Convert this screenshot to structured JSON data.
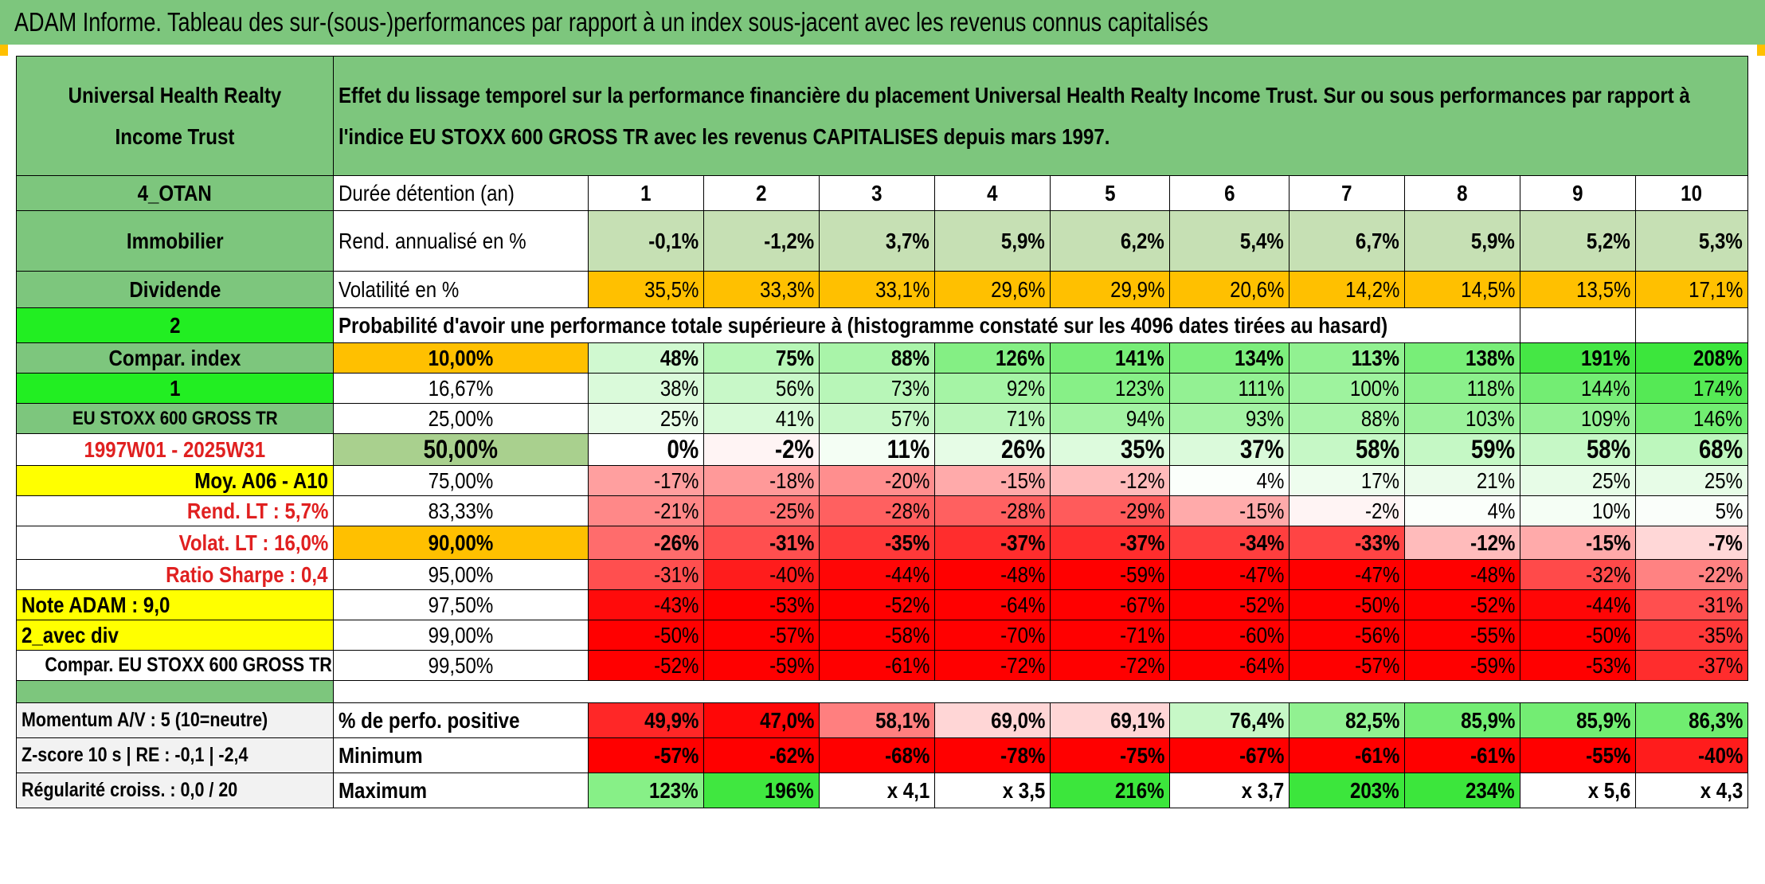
{
  "title": "ADAM Informe. Tableau des sur-(sous-)performances par rapport à un index sous-jacent avec les revenus connus capitalisés",
  "left": {
    "fund_name": "Universal Health Realty Income Trust",
    "code": "4_OTAN",
    "sector": "Immobilier",
    "type": "Dividende",
    "selector_1": "2",
    "compar_index_label": "Compar. index",
    "selector_2": "1",
    "index_name": "EU STOXX 600 GROSS TR",
    "period": "1997W01 - 2025W31",
    "moy": "Moy. A06 - A10",
    "rend_lt": "Rend. LT :   5,7%",
    "volat_lt": "Volat. LT :   16,0%",
    "sharpe": "Ratio Sharpe :   0,4",
    "note": "Note ADAM : 9,0",
    "div_mode": "2_avec div",
    "compar": "Compar. EU STOXX 600 GROSS TR",
    "momentum": "Momentum A/V : 5 (10=neutre)",
    "zscore": "Z-score 10 s | RE : -0,1 | -2,4",
    "regularite": "Régularité croiss. : 0,0 / 20"
  },
  "description": "Effet du lissage temporel sur la performance financière du placement Universal Health Realty Income Trust. Sur ou sous performances par rapport à l'indice EU STOXX 600 GROSS TR avec les revenus CAPITALISES depuis mars 1997.",
  "labels": {
    "duree": "Durée détention (an)",
    "rend": "Rend. annualisé en %",
    "volat": "Volatilité en %",
    "proba": "Probabilité d'avoir une performance totale supérieure à (histogramme constaté sur les 4096 dates tirées au hasard)",
    "pct_pos": "% de perfo. positive",
    "minimum": "Minimum",
    "maximum": "Maximum"
  },
  "years": [
    "1",
    "2",
    "3",
    "4",
    "5",
    "6",
    "7",
    "8",
    "9",
    "10"
  ],
  "rend": [
    "-0,1%",
    "-1,2%",
    "3,7%",
    "5,9%",
    "6,2%",
    "5,4%",
    "6,7%",
    "5,9%",
    "5,2%",
    "5,3%"
  ],
  "volat": [
    "35,5%",
    "33,3%",
    "33,1%",
    "29,6%",
    "29,9%",
    "20,6%",
    "14,2%",
    "14,5%",
    "13,5%",
    "17,1%"
  ],
  "proba_rows": [
    {
      "pct": "10,00%",
      "values": [
        "48%",
        "75%",
        "88%",
        "126%",
        "141%",
        "134%",
        "113%",
        "138%",
        "191%",
        "208%"
      ]
    },
    {
      "pct": "16,67%",
      "values": [
        "38%",
        "56%",
        "73%",
        "92%",
        "123%",
        "111%",
        "100%",
        "118%",
        "144%",
        "174%"
      ]
    },
    {
      "pct": "25,00%",
      "values": [
        "25%",
        "41%",
        "57%",
        "71%",
        "94%",
        "93%",
        "88%",
        "103%",
        "109%",
        "146%"
      ]
    },
    {
      "pct": "50,00%",
      "values": [
        "0%",
        "-2%",
        "11%",
        "26%",
        "35%",
        "37%",
        "58%",
        "59%",
        "58%",
        "68%"
      ]
    },
    {
      "pct": "75,00%",
      "values": [
        "-17%",
        "-18%",
        "-20%",
        "-15%",
        "-12%",
        "4%",
        "17%",
        "21%",
        "25%",
        "25%"
      ]
    },
    {
      "pct": "83,33%",
      "values": [
        "-21%",
        "-25%",
        "-28%",
        "-28%",
        "-29%",
        "-15%",
        "-2%",
        "4%",
        "10%",
        "5%"
      ]
    },
    {
      "pct": "90,00%",
      "values": [
        "-26%",
        "-31%",
        "-35%",
        "-37%",
        "-37%",
        "-34%",
        "-33%",
        "-12%",
        "-15%",
        "-7%"
      ]
    },
    {
      "pct": "95,00%",
      "values": [
        "-31%",
        "-40%",
        "-44%",
        "-48%",
        "-59%",
        "-47%",
        "-47%",
        "-48%",
        "-32%",
        "-22%"
      ]
    },
    {
      "pct": "97,50%",
      "values": [
        "-43%",
        "-53%",
        "-52%",
        "-64%",
        "-67%",
        "-52%",
        "-50%",
        "-52%",
        "-44%",
        "-31%"
      ]
    },
    {
      "pct": "99,00%",
      "values": [
        "-50%",
        "-57%",
        "-58%",
        "-70%",
        "-71%",
        "-60%",
        "-56%",
        "-55%",
        "-50%",
        "-35%"
      ]
    },
    {
      "pct": "99,50%",
      "values": [
        "-52%",
        "-59%",
        "-61%",
        "-72%",
        "-72%",
        "-64%",
        "-57%",
        "-59%",
        "-53%",
        "-37%"
      ]
    }
  ],
  "pct_pos": [
    "49,9%",
    "47,0%",
    "58,1%",
    "69,0%",
    "69,1%",
    "76,4%",
    "82,5%",
    "85,9%",
    "85,9%",
    "86,3%"
  ],
  "minimum": [
    "-57%",
    "-62%",
    "-68%",
    "-78%",
    "-75%",
    "-67%",
    "-61%",
    "-61%",
    "-55%",
    "-40%"
  ],
  "maximum": [
    "123%",
    "196%",
    "x 4,1",
    "x 3,5",
    "216%",
    "x 3,7",
    "203%",
    "234%",
    "x 5,6",
    "x 4,3"
  ]
}
